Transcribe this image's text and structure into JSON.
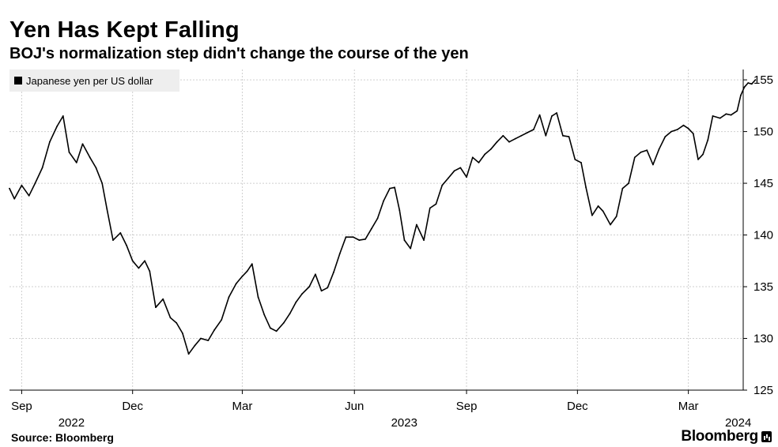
{
  "header": {
    "title": "Yen Has Kept Falling",
    "subtitle": "BOJ's normalization step didn't change the course of the yen"
  },
  "footer": {
    "source": "Source: Bloomberg",
    "brand": "Bloomberg"
  },
  "colors": {
    "line": "#000000",
    "grid": "#cfcfcf",
    "legend_bg": "#eeeeee",
    "background": "#ffffff"
  },
  "chart_data": {
    "type": "line",
    "title": "Yen Has Kept Falling",
    "subtitle": "BOJ's normalization step didn't change the course of the yen",
    "xlabel": "",
    "ylabel": "",
    "x_range": [
      "2022-08-22",
      "2024-04-15"
    ],
    "ylim": [
      125,
      156
    ],
    "y_axis_side": "right",
    "y_ticks": [
      125,
      130,
      135,
      140,
      145,
      150,
      155
    ],
    "x_ticks": [
      {
        "date": "2022-09-01",
        "label": "Sep",
        "year": "2022"
      },
      {
        "date": "2022-12-01",
        "label": "Dec",
        "year": ""
      },
      {
        "date": "2023-03-01",
        "label": "Mar",
        "year": ""
      },
      {
        "date": "2023-06-01",
        "label": "Jun",
        "year": "2023"
      },
      {
        "date": "2023-09-01",
        "label": "Sep",
        "year": ""
      },
      {
        "date": "2023-12-01",
        "label": "Dec",
        "year": ""
      },
      {
        "date": "2024-03-01",
        "label": "Mar",
        "year": "2024"
      }
    ],
    "grid": true,
    "legend_position": "top-left",
    "series": [
      {
        "name": "Japanese yen per US dollar",
        "points": [
          [
            "2022-08-22",
            144.5
          ],
          [
            "2022-08-26",
            143.5
          ],
          [
            "2022-09-01",
            144.8
          ],
          [
            "2022-09-07",
            143.8
          ],
          [
            "2022-09-12",
            145.0
          ],
          [
            "2022-09-18",
            146.5
          ],
          [
            "2022-09-24",
            149.0
          ],
          [
            "2022-09-30",
            150.5
          ],
          [
            "2022-10-05",
            151.5
          ],
          [
            "2022-10-10",
            148.0
          ],
          [
            "2022-10-16",
            147.0
          ],
          [
            "2022-10-21",
            148.8
          ],
          [
            "2022-10-27",
            147.5
          ],
          [
            "2022-11-01",
            146.5
          ],
          [
            "2022-11-06",
            145.0
          ],
          [
            "2022-11-10",
            142.5
          ],
          [
            "2022-11-15",
            139.5
          ],
          [
            "2022-11-21",
            140.2
          ],
          [
            "2022-11-26",
            139.0
          ],
          [
            "2022-12-01",
            137.5
          ],
          [
            "2022-12-06",
            136.8
          ],
          [
            "2022-12-11",
            137.5
          ],
          [
            "2022-12-15",
            136.5
          ],
          [
            "2022-12-20",
            133.0
          ],
          [
            "2022-12-26",
            133.8
          ],
          [
            "2023-01-01",
            132.0
          ],
          [
            "2023-01-06",
            131.5
          ],
          [
            "2023-01-11",
            130.5
          ],
          [
            "2023-01-16",
            128.5
          ],
          [
            "2023-01-21",
            129.3
          ],
          [
            "2023-01-26",
            130.0
          ],
          [
            "2023-02-01",
            129.8
          ],
          [
            "2023-02-06",
            130.8
          ],
          [
            "2023-02-12",
            131.8
          ],
          [
            "2023-02-18",
            134.0
          ],
          [
            "2023-02-24",
            135.3
          ],
          [
            "2023-03-01",
            136.0
          ],
          [
            "2023-03-05",
            136.5
          ],
          [
            "2023-03-09",
            137.2
          ],
          [
            "2023-03-14",
            134.0
          ],
          [
            "2023-03-19",
            132.3
          ],
          [
            "2023-03-24",
            131.0
          ],
          [
            "2023-03-29",
            130.7
          ],
          [
            "2023-04-04",
            131.5
          ],
          [
            "2023-04-09",
            132.4
          ],
          [
            "2023-04-14",
            133.5
          ],
          [
            "2023-04-19",
            134.3
          ],
          [
            "2023-04-25",
            135.0
          ],
          [
            "2023-04-30",
            136.2
          ],
          [
            "2023-05-05",
            134.6
          ],
          [
            "2023-05-10",
            134.9
          ],
          [
            "2023-05-15",
            136.4
          ],
          [
            "2023-05-20",
            138.2
          ],
          [
            "2023-05-25",
            139.8
          ],
          [
            "2023-05-31",
            139.8
          ],
          [
            "2023-06-05",
            139.5
          ],
          [
            "2023-06-10",
            139.6
          ],
          [
            "2023-06-15",
            140.6
          ],
          [
            "2023-06-20",
            141.6
          ],
          [
            "2023-06-25",
            143.3
          ],
          [
            "2023-06-30",
            144.5
          ],
          [
            "2023-07-04",
            144.6
          ],
          [
            "2023-07-08",
            142.4
          ],
          [
            "2023-07-12",
            139.5
          ],
          [
            "2023-07-17",
            138.7
          ],
          [
            "2023-07-22",
            141.0
          ],
          [
            "2023-07-28",
            139.5
          ],
          [
            "2023-08-02",
            142.6
          ],
          [
            "2023-08-07",
            143.0
          ],
          [
            "2023-08-12",
            144.8
          ],
          [
            "2023-08-17",
            145.5
          ],
          [
            "2023-08-22",
            146.2
          ],
          [
            "2023-08-27",
            146.5
          ],
          [
            "2023-09-01",
            145.6
          ],
          [
            "2023-09-06",
            147.5
          ],
          [
            "2023-09-11",
            147.0
          ],
          [
            "2023-09-16",
            147.8
          ],
          [
            "2023-09-21",
            148.3
          ],
          [
            "2023-09-26",
            149.0
          ],
          [
            "2023-10-01",
            149.6
          ],
          [
            "2023-10-06",
            149.0
          ],
          [
            "2023-10-11",
            149.3
          ],
          [
            "2023-10-16",
            149.6
          ],
          [
            "2023-10-21",
            149.9
          ],
          [
            "2023-10-26",
            150.2
          ],
          [
            "2023-10-31",
            151.6
          ],
          [
            "2023-11-05",
            149.6
          ],
          [
            "2023-11-10",
            151.5
          ],
          [
            "2023-11-14",
            151.8
          ],
          [
            "2023-11-19",
            149.6
          ],
          [
            "2023-11-24",
            149.5
          ],
          [
            "2023-11-29",
            147.3
          ],
          [
            "2023-12-04",
            147.0
          ],
          [
            "2023-12-08",
            144.6
          ],
          [
            "2023-12-13",
            141.9
          ],
          [
            "2023-12-18",
            142.8
          ],
          [
            "2023-12-22",
            142.3
          ],
          [
            "2023-12-28",
            141.0
          ],
          [
            "2024-01-02",
            141.8
          ],
          [
            "2024-01-07",
            144.5
          ],
          [
            "2024-01-12",
            145.0
          ],
          [
            "2024-01-17",
            147.5
          ],
          [
            "2024-01-22",
            148.0
          ],
          [
            "2024-01-27",
            148.2
          ],
          [
            "2024-02-01",
            146.8
          ],
          [
            "2024-02-06",
            148.3
          ],
          [
            "2024-02-11",
            149.5
          ],
          [
            "2024-02-16",
            150.0
          ],
          [
            "2024-02-21",
            150.2
          ],
          [
            "2024-02-26",
            150.6
          ],
          [
            "2024-03-01",
            150.3
          ],
          [
            "2024-03-05",
            149.8
          ],
          [
            "2024-03-09",
            147.3
          ],
          [
            "2024-03-13",
            147.8
          ],
          [
            "2024-03-17",
            149.2
          ],
          [
            "2024-03-21",
            151.5
          ],
          [
            "2024-03-27",
            151.3
          ],
          [
            "2024-04-01",
            151.7
          ],
          [
            "2024-04-05",
            151.6
          ],
          [
            "2024-04-10",
            152.0
          ],
          [
            "2024-04-13",
            153.5
          ],
          [
            "2024-04-16",
            154.3
          ],
          [
            "2024-04-19",
            154.7
          ],
          [
            "2024-04-22",
            154.6
          ],
          [
            "2024-04-25",
            155.0
          ]
        ]
      }
    ]
  }
}
